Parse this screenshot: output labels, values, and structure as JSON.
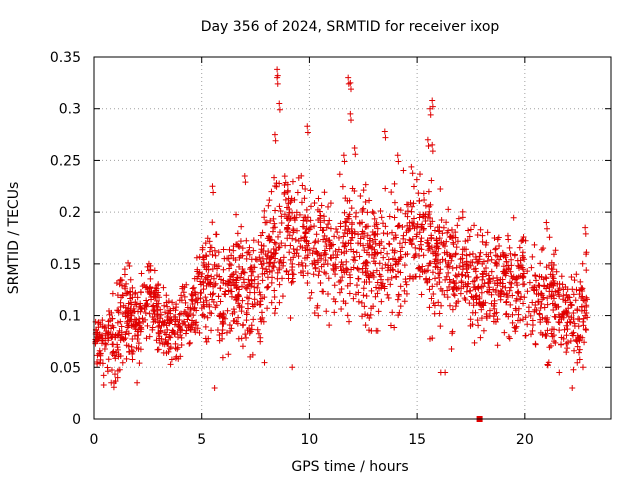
{
  "chart_data": {
    "type": "scatter",
    "title": "Day 356 of 2024, SRMTID for receiver ixop",
    "xlabel": "GPS time / hours",
    "ylabel": "SRMTID / TECUs",
    "xlim": [
      0,
      24
    ],
    "ylim": [
      0,
      0.35
    ],
    "x_ticks": [
      0,
      5,
      10,
      15,
      20
    ],
    "x_tick_labels": [
      "0",
      "5",
      "10",
      "15",
      "20"
    ],
    "y_ticks": [
      0,
      0.05,
      0.1,
      0.15,
      0.2,
      0.25,
      0.3,
      0.35
    ],
    "y_tick_labels": [
      "0",
      "0.05",
      "0.1",
      "0.15",
      "0.2",
      "0.25",
      "0.3",
      "0.35"
    ],
    "grid": true,
    "marker": "+",
    "color": "#e00000",
    "x_range_of_data": [
      0,
      22.9
    ],
    "special_marker": {
      "x": 17.9,
      "y": 0.0,
      "shape": "square"
    },
    "envelope": {
      "hours": [
        0,
        0.5,
        1,
        1.5,
        2,
        2.5,
        3,
        3.5,
        4,
        4.5,
        5,
        5.5,
        6,
        6.5,
        7,
        7.5,
        8,
        8.5,
        9,
        9.5,
        10,
        10.5,
        11,
        11.5,
        12,
        12.5,
        13,
        13.5,
        14,
        14.5,
        15,
        15.5,
        16,
        16.5,
        17,
        17.5,
        18,
        18.5,
        19,
        19.5,
        20,
        20.5,
        21,
        21.5,
        22,
        22.5,
        22.9
      ],
      "center": [
        0.085,
        0.075,
        0.07,
        0.11,
        0.09,
        0.12,
        0.1,
        0.085,
        0.095,
        0.105,
        0.13,
        0.135,
        0.12,
        0.13,
        0.12,
        0.125,
        0.14,
        0.18,
        0.17,
        0.19,
        0.17,
        0.165,
        0.16,
        0.16,
        0.165,
        0.16,
        0.15,
        0.155,
        0.16,
        0.17,
        0.175,
        0.165,
        0.15,
        0.14,
        0.145,
        0.135,
        0.13,
        0.135,
        0.13,
        0.125,
        0.13,
        0.115,
        0.115,
        0.11,
        0.1,
        0.095,
        0.12
      ],
      "spread": [
        0.02,
        0.025,
        0.03,
        0.03,
        0.025,
        0.025,
        0.025,
        0.025,
        0.025,
        0.025,
        0.035,
        0.035,
        0.035,
        0.035,
        0.04,
        0.04,
        0.045,
        0.05,
        0.05,
        0.045,
        0.04,
        0.04,
        0.04,
        0.045,
        0.045,
        0.045,
        0.04,
        0.04,
        0.04,
        0.045,
        0.045,
        0.045,
        0.04,
        0.04,
        0.035,
        0.035,
        0.035,
        0.035,
        0.035,
        0.035,
        0.035,
        0.035,
        0.035,
        0.035,
        0.03,
        0.03,
        0.035
      ]
    },
    "peaks": [
      {
        "x": 8.5,
        "y": 0.338
      },
      {
        "x": 8.5,
        "y": 0.33
      },
      {
        "x": 11.8,
        "y": 0.33
      },
      {
        "x": 11.9,
        "y": 0.325
      },
      {
        "x": 8.6,
        "y": 0.305
      },
      {
        "x": 15.7,
        "y": 0.308
      },
      {
        "x": 15.6,
        "y": 0.3
      },
      {
        "x": 11.9,
        "y": 0.295
      },
      {
        "x": 9.9,
        "y": 0.283
      },
      {
        "x": 13.5,
        "y": 0.278
      },
      {
        "x": 8.4,
        "y": 0.275
      },
      {
        "x": 15.5,
        "y": 0.27
      },
      {
        "x": 15.7,
        "y": 0.265
      },
      {
        "x": 12.1,
        "y": 0.262
      },
      {
        "x": 11.6,
        "y": 0.255
      },
      {
        "x": 14.1,
        "y": 0.255
      },
      {
        "x": 5.5,
        "y": 0.225
      },
      {
        "x": 7.0,
        "y": 0.235
      },
      {
        "x": 21.0,
        "y": 0.19
      },
      {
        "x": 22.8,
        "y": 0.185
      }
    ],
    "lows": [
      {
        "x": 0.8,
        "y": 0.035
      },
      {
        "x": 1.1,
        "y": 0.04
      },
      {
        "x": 2.0,
        "y": 0.035
      },
      {
        "x": 5.6,
        "y": 0.03
      },
      {
        "x": 9.2,
        "y": 0.05
      },
      {
        "x": 16.1,
        "y": 0.045
      },
      {
        "x": 16.3,
        "y": 0.045
      },
      {
        "x": 21.6,
        "y": 0.045
      },
      {
        "x": 22.2,
        "y": 0.03
      },
      {
        "x": 22.7,
        "y": 0.05
      }
    ]
  }
}
